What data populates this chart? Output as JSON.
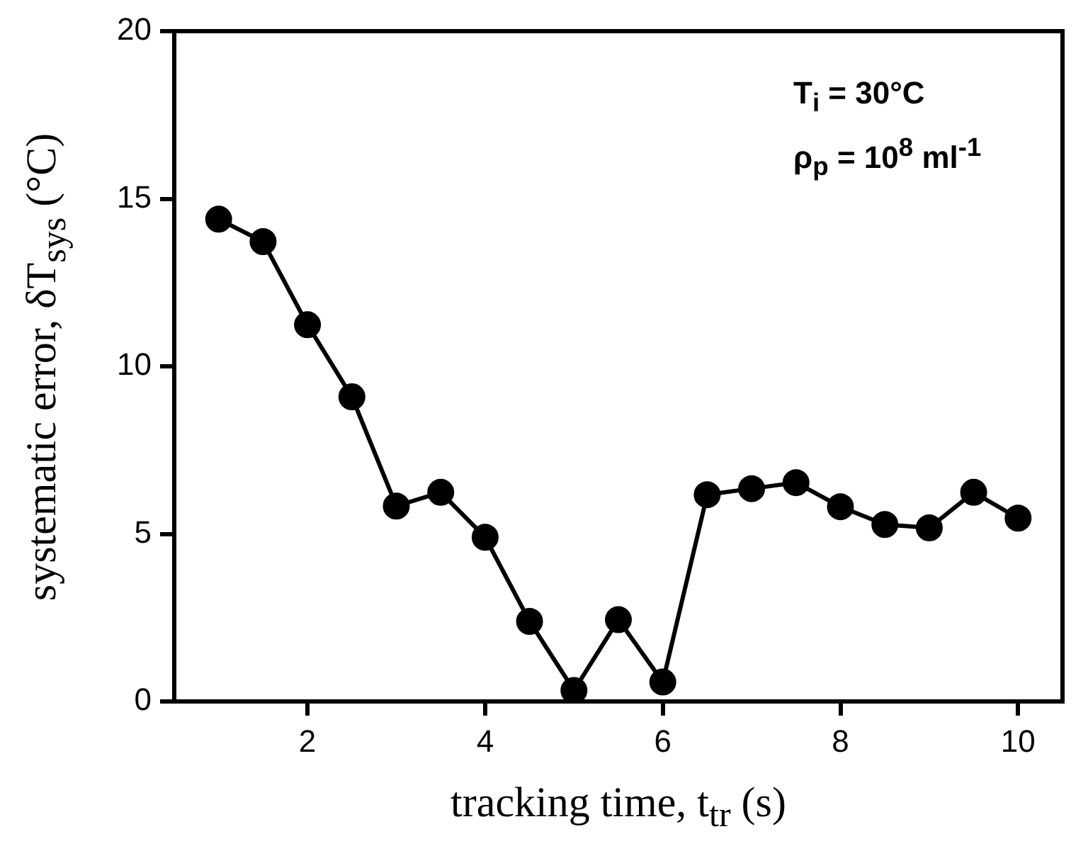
{
  "chart_data": {
    "type": "line",
    "xlabel": "tracking time, t$_{tr}$ (s)",
    "ylabel": "systematic error, δT$_{sys}$ (°C)",
    "annotations": [
      "T$_{i}$ = 30°C",
      "ρ$_{p}$ = 10$^{8}$ ml$^{-1}$"
    ],
    "x": [
      1,
      1.5,
      2,
      2.5,
      3,
      3.5,
      4,
      4.5,
      5,
      5.5,
      6,
      6.5,
      7,
      7.5,
      8,
      8.5,
      9,
      9.5,
      10
    ],
    "series": [
      {
        "color": "#000000",
        "values": [
          14.39,
          13.72,
          11.24,
          9.09,
          5.83,
          6.24,
          4.9,
          2.39,
          0.33,
          2.44,
          0.58,
          6.17,
          6.35,
          6.53,
          5.81,
          5.28,
          5.18,
          6.24,
          5.47
        ]
      }
    ],
    "xlim": [
      0.5,
      10.5
    ],
    "xticks": [
      2,
      4,
      6,
      8,
      10
    ],
    "ylim": [
      0,
      20
    ],
    "yticks": [
      0,
      5,
      10,
      15,
      20
    ],
    "marker": "circle",
    "line_style": "solid"
  }
}
